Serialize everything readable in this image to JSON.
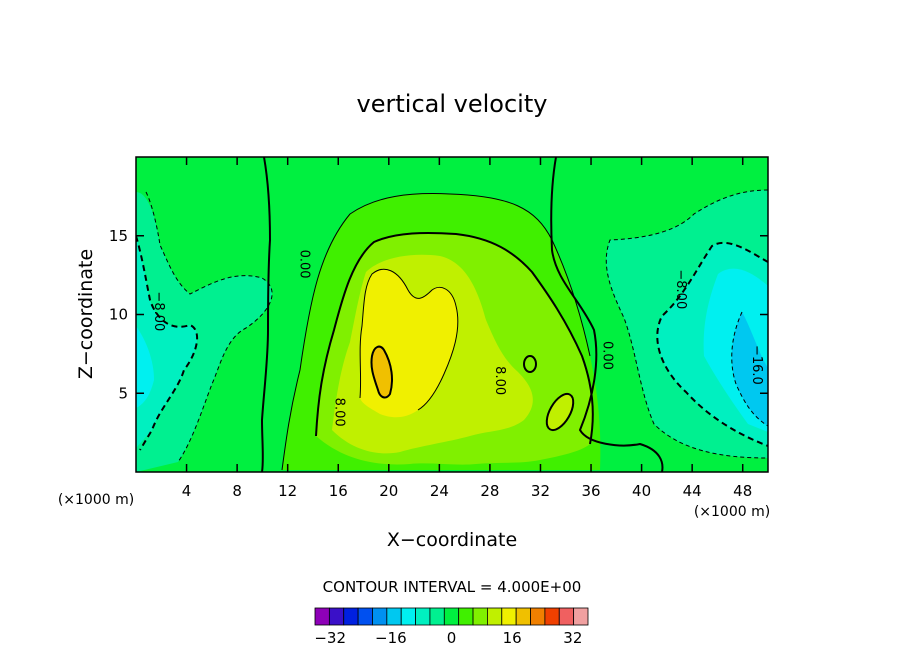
{
  "chart_data": {
    "type": "heatmap",
    "title": "vertical velocity",
    "xlabel": "X−coordinate",
    "ylabel": "Z−coordinate",
    "x_units_left": "(×1000 m)",
    "x_units_right": "(×1000 m)",
    "xlim": [
      0,
      50
    ],
    "ylim": [
      0,
      20
    ],
    "x_ticks": [
      4,
      8,
      12,
      16,
      20,
      24,
      28,
      32,
      36,
      40,
      44,
      48
    ],
    "y_ticks": [
      5,
      10,
      15
    ],
    "x_tick_labels": [
      "4",
      "8",
      "12",
      "16",
      "20",
      "24",
      "28",
      "32",
      "36",
      "40",
      "44",
      "48"
    ],
    "y_tick_labels": [
      "5",
      "10",
      "15"
    ],
    "contour_interval_label": "CONTOUR INTERVAL = 4.000E+00",
    "contour_labels": [
      {
        "text": "−8.00",
        "x": 1.5,
        "y": 10.2
      },
      {
        "text": "0.00",
        "x": 13.0,
        "y": 13.2
      },
      {
        "text": "8.00",
        "x": 15.8,
        "y": 3.8
      },
      {
        "text": "8.00",
        "x": 28.5,
        "y": 5.8
      },
      {
        "text": "0.00",
        "x": 37.0,
        "y": 7.4
      },
      {
        "text": "−8.00",
        "x": 42.8,
        "y": 11.6
      },
      {
        "text": "−16.0",
        "x": 48.8,
        "y": 6.8
      }
    ],
    "colorbar": {
      "levels": [
        -36,
        -32,
        -28,
        -24,
        -20,
        -16,
        -12,
        -8,
        -4,
        0,
        4,
        8,
        12,
        16,
        20,
        24,
        28,
        32,
        36
      ],
      "colors": [
        "#8e00b8",
        "#3a10c8",
        "#0020e0",
        "#0050f0",
        "#0090f0",
        "#00c8f0",
        "#00f0f0",
        "#00f0c0",
        "#00f090",
        "#00f040",
        "#40f000",
        "#80f000",
        "#c0f000",
        "#f0f000",
        "#f0c000",
        "#f08000",
        "#f04000",
        "#f06060",
        "#f0a0a0"
      ],
      "tick_values": [
        -32,
        -16,
        0,
        16,
        32
      ],
      "tick_labels": [
        "−32",
        "−16",
        "0",
        "16",
        "32"
      ]
    }
  }
}
